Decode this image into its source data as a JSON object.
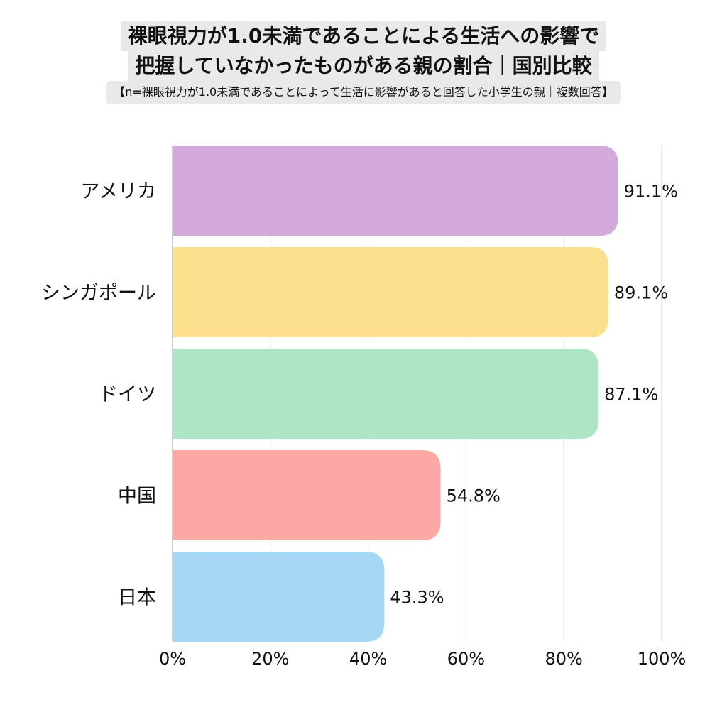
{
  "chart_data": {
    "type": "bar",
    "orientation": "horizontal",
    "title_lines": [
      "裸眼視力が1.0未満であることによる生活への影響で",
      "把握していなかったものがある親の割合｜国別比較"
    ],
    "subtitle": "【n=裸眼視力が1.0未満であることによって生活に影響があると回答した小学生の親｜複数回答】",
    "categories": [
      "アメリカ",
      "シンガポール",
      "ドイツ",
      "中国",
      "日本"
    ],
    "values": [
      91.1,
      89.1,
      87.1,
      54.8,
      43.3
    ],
    "value_labels": [
      "91.1%",
      "89.1%",
      "87.1%",
      "54.8%",
      "43.3%"
    ],
    "colors": [
      "#d4aadc",
      "#fde08e",
      "#aee6c5",
      "#fca9a5",
      "#a6d8f5"
    ],
    "x_ticks": [
      "0%",
      "20%",
      "40%",
      "60%",
      "80%",
      "100%"
    ],
    "xlim": [
      0,
      100
    ],
    "grid": true,
    "legend": "none"
  }
}
